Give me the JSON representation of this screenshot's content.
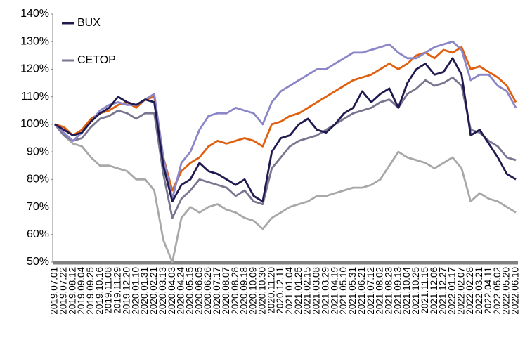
{
  "chart_data": {
    "type": "line",
    "categories": [
      "2019.07.01",
      "2019.07.22",
      "2019.08.12",
      "2019.09.04",
      "2019.09.25",
      "2019.10.16",
      "2019.11.08",
      "2019.11.29",
      "2019.12.20",
      "2020.01.10",
      "2020.01.31",
      "2020.02.21",
      "2020.03.13",
      "2020.04.03",
      "2020.04.24",
      "2020.05.15",
      "2020.06.05",
      "2020.06.26",
      "2020.07.17",
      "2020.08.07",
      "2020.08.28",
      "2020.09.18",
      "2020.10.09",
      "2020.10.30",
      "2020.11.20",
      "2020.12.11",
      "2021.01.04",
      "2021.01.25",
      "2021.02.15",
      "2021.03.08",
      "2021.03.29",
      "2021.04.19",
      "2021.05.10",
      "2021.05.31",
      "2021.06.21",
      "2021.07.12",
      "2021.08.02",
      "2021.08.23",
      "2021.09.13",
      "2021.10.04",
      "2021.10.25",
      "2021.11.15",
      "2021.12.06",
      "2021.12.27",
      "2022.01.17",
      "2022.02.07",
      "2022.02.28",
      "2022.03.21",
      "2022.04.11",
      "2022.05.02",
      "2022.05.20",
      "2022.06.10"
    ],
    "series": [
      {
        "color": "#a8a8a8",
        "values": [
          100,
          96,
          93,
          92,
          88,
          85,
          85,
          84,
          83,
          80,
          80,
          76,
          58,
          50,
          66,
          70,
          68,
          70,
          71,
          69,
          68,
          66,
          65,
          62,
          66,
          68,
          70,
          71,
          72,
          74,
          74,
          75,
          76,
          77,
          77,
          78,
          80,
          85,
          90,
          88,
          87,
          86,
          84,
          86,
          88,
          84,
          72,
          75,
          73,
          72,
          70,
          68
        ]
      },
      {
        "name": "CETOP",
        "color": "#7a7690",
        "values": [
          100,
          96,
          94,
          95,
          99,
          102,
          103,
          105,
          104,
          102,
          104,
          104,
          82,
          66,
          73,
          76,
          80,
          79,
          78,
          77,
          74,
          76,
          72,
          71,
          84,
          88,
          92,
          94,
          95,
          96,
          98,
          100,
          102,
          104,
          105,
          106,
          108,
          109,
          106,
          111,
          113,
          116,
          114,
          115,
          117,
          114,
          98,
          97,
          94,
          92,
          88,
          87
        ]
      },
      {
        "color": "#e06010",
        "values": [
          100,
          99,
          96,
          98,
          102,
          104,
          105,
          107,
          108,
          106,
          109,
          110,
          88,
          76,
          83,
          86,
          88,
          92,
          94,
          93,
          94,
          95,
          94,
          92,
          100,
          101,
          103,
          104,
          106,
          108,
          110,
          112,
          114,
          116,
          117,
          118,
          120,
          122,
          120,
          122,
          125,
          126,
          124,
          127,
          126,
          128,
          120,
          121,
          119,
          117,
          114,
          108
        ]
      },
      {
        "color": "#8a86c8",
        "values": [
          100,
          97,
          94,
          97,
          101,
          105,
          107,
          108,
          107,
          107,
          109,
          111,
          88,
          73,
          86,
          90,
          98,
          103,
          104,
          104,
          106,
          105,
          104,
          100,
          108,
          112,
          114,
          116,
          118,
          120,
          120,
          122,
          124,
          126,
          126,
          127,
          128,
          129,
          126,
          124,
          124,
          126,
          128,
          129,
          130,
          127,
          116,
          118,
          118,
          114,
          112,
          106
        ]
      },
      {
        "name": "BUX",
        "color": "#1f1a4f",
        "values": [
          100,
          98,
          96,
          97,
          101,
          104,
          106,
          110,
          108,
          107,
          109,
          108,
          85,
          72,
          78,
          80,
          86,
          83,
          82,
          80,
          78,
          80,
          74,
          72,
          90,
          95,
          96,
          100,
          102,
          98,
          97,
          100,
          104,
          106,
          112,
          108,
          111,
          113,
          106,
          115,
          120,
          122,
          118,
          119,
          124,
          118,
          96,
          98,
          93,
          88,
          82,
          80
        ]
      }
    ],
    "ylim": [
      50,
      140
    ],
    "yticks": [
      {
        "value": 50,
        "label": "50%"
      },
      {
        "value": 60,
        "label": "60%"
      },
      {
        "value": 70,
        "label": "70%"
      },
      {
        "value": 80,
        "label": "80%"
      },
      {
        "value": 90,
        "label": "90%"
      },
      {
        "value": 100,
        "label": "100%"
      },
      {
        "value": 110,
        "label": "110%"
      },
      {
        "value": 120,
        "label": "120%"
      },
      {
        "value": 130,
        "label": "130%"
      },
      {
        "value": 140,
        "label": "140%"
      }
    ],
    "grid": false,
    "legend": "upper left"
  }
}
